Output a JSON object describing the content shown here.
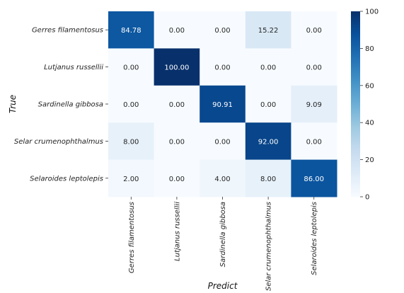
{
  "chart_data": {
    "type": "heatmap",
    "title": "",
    "xlabel": "Predict",
    "ylabel": "True",
    "x_categories": [
      "Gerres filamentosus",
      "Lutjanus russellii",
      "Sardinella gibbosa",
      "Selar crumenophthalmus",
      "Selaroides leptolepis"
    ],
    "y_categories": [
      "Gerres filamentosus",
      "Lutjanus russellii",
      "Sardinella gibbosa",
      "Selar crumenophthalmus",
      "Selaroides leptolepis"
    ],
    "values": [
      [
        84.78,
        0.0,
        0.0,
        15.22,
        0.0
      ],
      [
        0.0,
        100.0,
        0.0,
        0.0,
        0.0
      ],
      [
        0.0,
        0.0,
        90.91,
        0.0,
        9.09
      ],
      [
        8.0,
        0.0,
        0.0,
        92.0,
        0.0
      ],
      [
        2.0,
        0.0,
        4.0,
        8.0,
        86.0
      ]
    ],
    "value_labels": [
      [
        "84.78",
        "0.00",
        "0.00",
        "15.22",
        "0.00"
      ],
      [
        "0.00",
        "100.00",
        "0.00",
        "0.00",
        "0.00"
      ],
      [
        "0.00",
        "0.00",
        "90.91",
        "0.00",
        "9.09"
      ],
      [
        "8.00",
        "0.00",
        "0.00",
        "92.00",
        "0.00"
      ],
      [
        "2.00",
        "0.00",
        "4.00",
        "8.00",
        "86.00"
      ]
    ],
    "colorbar": {
      "range": [
        0,
        100
      ],
      "ticks": [
        "0",
        "20",
        "40",
        "60",
        "80",
        "100"
      ],
      "colormap": "Blues"
    }
  }
}
